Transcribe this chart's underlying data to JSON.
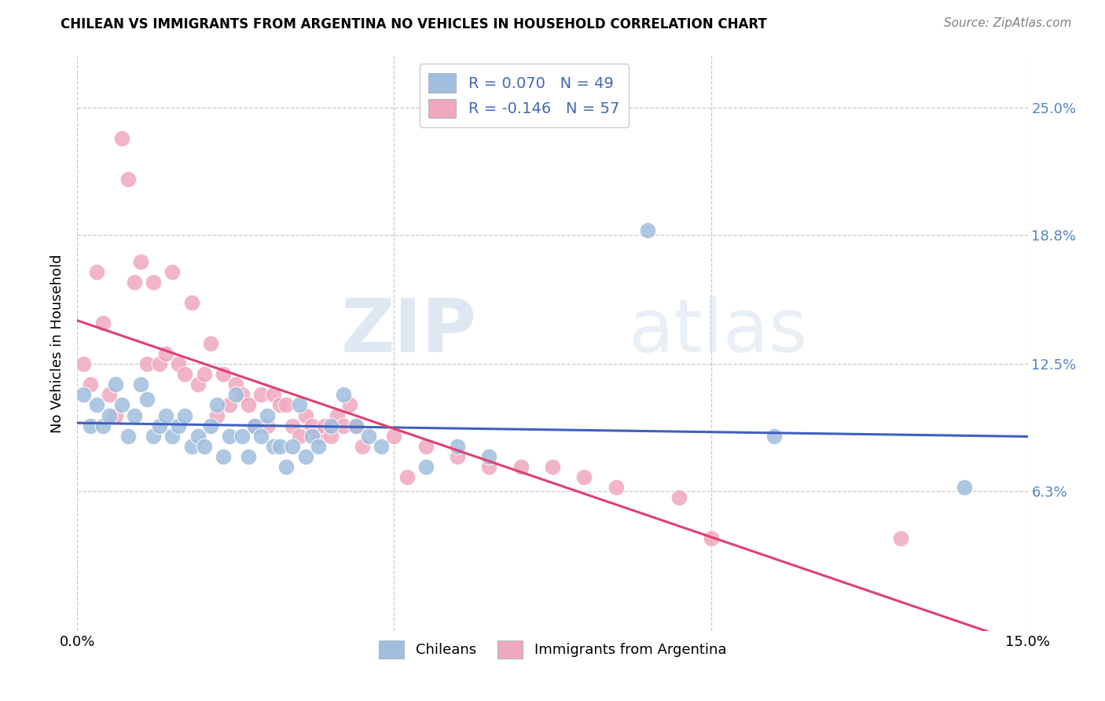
{
  "title": "CHILEAN VS IMMIGRANTS FROM ARGENTINA NO VEHICLES IN HOUSEHOLD CORRELATION CHART",
  "source": "Source: ZipAtlas.com",
  "ylabel": "No Vehicles in Household",
  "ytick_labels": [
    "25.0%",
    "18.8%",
    "12.5%",
    "6.3%"
  ],
  "ytick_values": [
    0.25,
    0.188,
    0.125,
    0.063
  ],
  "xlim": [
    0.0,
    0.15
  ],
  "ylim": [
    -0.005,
    0.275
  ],
  "chilean_color": "#a0bedd",
  "argentina_color": "#f0a8be",
  "trend_chilean_color": "#4060c0",
  "trend_argentina_color": "#e04070",
  "background_color": "#ffffff",
  "grid_color": "#c8c8c8",
  "watermark_zip": "ZIP",
  "watermark_atlas": "atlas",
  "legend_label_1": "R = 0.070",
  "legend_n_1": "N = 49",
  "legend_label_2": "R = -0.146",
  "legend_n_2": "N = 57",
  "bottom_label_1": "Chileans",
  "bottom_label_2": "Immigrants from Argentina",
  "title_fontsize": 12,
  "source_fontsize": 11,
  "tick_fontsize": 13,
  "ylabel_fontsize": 13,
  "chilean_x": [
    0.001,
    0.002,
    0.003,
    0.004,
    0.005,
    0.006,
    0.007,
    0.008,
    0.009,
    0.01,
    0.011,
    0.012,
    0.013,
    0.014,
    0.015,
    0.016,
    0.017,
    0.018,
    0.019,
    0.02,
    0.021,
    0.022,
    0.023,
    0.024,
    0.025,
    0.026,
    0.027,
    0.028,
    0.029,
    0.03,
    0.031,
    0.032,
    0.033,
    0.034,
    0.035,
    0.036,
    0.037,
    0.038,
    0.04,
    0.042,
    0.044,
    0.046,
    0.048,
    0.055,
    0.06,
    0.065,
    0.09,
    0.11,
    0.14
  ],
  "chilean_y": [
    0.11,
    0.095,
    0.105,
    0.095,
    0.1,
    0.115,
    0.105,
    0.09,
    0.1,
    0.115,
    0.108,
    0.09,
    0.095,
    0.1,
    0.09,
    0.095,
    0.1,
    0.085,
    0.09,
    0.085,
    0.095,
    0.105,
    0.08,
    0.09,
    0.11,
    0.09,
    0.08,
    0.095,
    0.09,
    0.1,
    0.085,
    0.085,
    0.075,
    0.085,
    0.105,
    0.08,
    0.09,
    0.085,
    0.095,
    0.11,
    0.095,
    0.09,
    0.085,
    0.075,
    0.085,
    0.08,
    0.19,
    0.09,
    0.065
  ],
  "argentina_x": [
    0.001,
    0.002,
    0.003,
    0.004,
    0.005,
    0.006,
    0.007,
    0.008,
    0.009,
    0.01,
    0.011,
    0.012,
    0.013,
    0.014,
    0.015,
    0.016,
    0.017,
    0.018,
    0.019,
    0.02,
    0.021,
    0.022,
    0.023,
    0.024,
    0.025,
    0.026,
    0.027,
    0.028,
    0.029,
    0.03,
    0.031,
    0.032,
    0.033,
    0.034,
    0.035,
    0.036,
    0.037,
    0.038,
    0.039,
    0.04,
    0.041,
    0.042,
    0.043,
    0.044,
    0.045,
    0.05,
    0.052,
    0.055,
    0.06,
    0.065,
    0.07,
    0.075,
    0.08,
    0.085,
    0.095,
    0.1,
    0.13
  ],
  "argentina_y": [
    0.125,
    0.115,
    0.17,
    0.145,
    0.11,
    0.1,
    0.235,
    0.215,
    0.165,
    0.175,
    0.125,
    0.165,
    0.125,
    0.13,
    0.17,
    0.125,
    0.12,
    0.155,
    0.115,
    0.12,
    0.135,
    0.1,
    0.12,
    0.105,
    0.115,
    0.11,
    0.105,
    0.095,
    0.11,
    0.095,
    0.11,
    0.105,
    0.105,
    0.095,
    0.09,
    0.1,
    0.095,
    0.09,
    0.095,
    0.09,
    0.1,
    0.095,
    0.105,
    0.095,
    0.085,
    0.09,
    0.07,
    0.085,
    0.08,
    0.075,
    0.075,
    0.075,
    0.07,
    0.065,
    0.06,
    0.04,
    0.04
  ]
}
